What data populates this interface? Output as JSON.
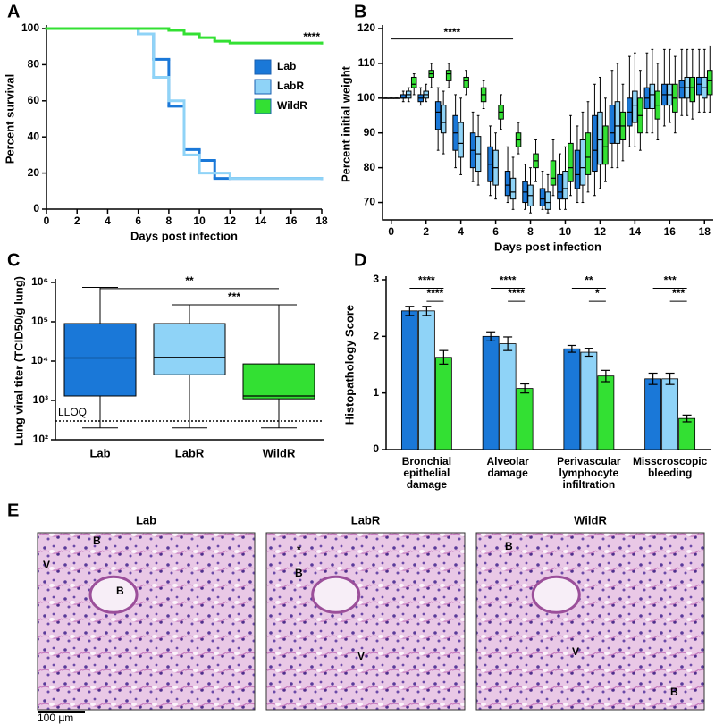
{
  "panel_labels": [
    "A",
    "B",
    "C",
    "D",
    "E"
  ],
  "chart_data": [
    {
      "type": "line",
      "step": true,
      "xlabel": "Days post infection",
      "ylabel": "Percent survival",
      "xlim": [
        0,
        18
      ],
      "ylim": [
        0,
        100
      ],
      "xticks": [
        0,
        2,
        4,
        6,
        8,
        10,
        12,
        14,
        16,
        18
      ],
      "yticks": [
        0,
        20,
        40,
        60,
        80,
        100
      ],
      "annotation": "****",
      "legend": "upper right",
      "x": [
        0,
        6,
        7,
        8,
        9,
        10,
        11,
        12,
        18
      ],
      "series": [
        {
          "name": "Lab",
          "color": "#1a78d8",
          "values": [
            100,
            97,
            83,
            57,
            33,
            27,
            17,
            17,
            17
          ]
        },
        {
          "name": "LabR",
          "color": "#8fd3f7",
          "values": [
            100,
            97,
            73,
            60,
            30,
            20,
            20,
            17,
            17
          ]
        },
        {
          "name": "WildR",
          "color": "#33e033",
          "values": [
            100,
            100,
            100,
            99,
            97,
            95,
            93,
            92,
            92
          ]
        }
      ]
    },
    {
      "type": "box",
      "xlabel": "Days post infection",
      "ylabel": "Percent initial weight",
      "xlim": [
        -0.5,
        18.5
      ],
      "ylim": [
        65,
        120
      ],
      "xticks": [
        0,
        2,
        4,
        6,
        8,
        10,
        12,
        14,
        16,
        18
      ],
      "yticks": [
        70,
        80,
        90,
        100,
        110,
        120
      ],
      "annotation": {
        "text": "****",
        "x": [
          0,
          7
        ],
        "y": 117
      },
      "x": [
        0,
        1,
        2,
        3,
        4,
        5,
        6,
        7,
        8,
        9,
        10,
        11,
        12,
        13,
        14,
        15,
        16,
        17,
        18
      ],
      "series": [
        {
          "color": "#1a78d8",
          "boxes": [
            [
              100,
              100,
              100,
              100,
              100
            ],
            [
              99,
              100,
              100,
              101,
              102
            ],
            [
              98,
              99,
              100,
              101,
              103
            ],
            [
              85,
              91,
              96,
              99,
              103
            ],
            [
              80,
              85,
              90,
              95,
              101
            ],
            [
              76,
              80,
              85,
              90,
              96
            ],
            [
              72,
              76,
              81,
              86,
              92
            ],
            [
              70,
              72,
              75,
              79,
              86
            ],
            [
              68,
              70,
              73,
              76,
              81
            ],
            [
              68,
              69,
              71,
              74,
              79
            ],
            [
              68,
              71,
              73,
              78,
              84
            ],
            [
              70,
              74,
              78,
              85,
              92
            ],
            [
              72,
              79,
              85,
              95,
              104
            ],
            [
              80,
              87,
              90,
              98,
              108
            ],
            [
              86,
              92,
              96,
              100,
              112
            ],
            [
              90,
              97,
              100,
              103,
              113
            ],
            [
              92,
              98,
              101,
              104,
              114
            ],
            [
              95,
              100,
              103,
              105,
              114
            ],
            [
              96,
              101,
              104,
              106,
              114
            ]
          ]
        },
        {
          "color": "#8fd3f7",
          "boxes": [
            [
              100,
              100,
              100,
              100,
              100
            ],
            [
              99,
              100,
              101,
              102,
              103
            ],
            [
              99,
              100,
              101,
              102,
              104
            ],
            [
              84,
              90,
              93,
              98,
              102
            ],
            [
              78,
              83,
              87,
              93,
              100
            ],
            [
              75,
              79,
              84,
              89,
              95
            ],
            [
              71,
              75,
              80,
              85,
              90
            ],
            [
              68,
              71,
              73,
              77,
              83
            ],
            [
              67,
              69,
              72,
              75,
              80
            ],
            [
              67,
              68,
              70,
              73,
              78
            ],
            [
              68,
              71,
              74,
              79,
              86
            ],
            [
              70,
              75,
              80,
              88,
              96
            ],
            [
              74,
              81,
              88,
              96,
              106
            ],
            [
              80,
              87,
              92,
              99,
              110
            ],
            [
              86,
              93,
              98,
              102,
              113
            ],
            [
              90,
              97,
              101,
              104,
              114
            ],
            [
              93,
              98,
              101,
              104,
              114
            ],
            [
              95,
              100,
              103,
              106,
              114
            ],
            [
              96,
              100,
              103,
              106,
              114
            ]
          ]
        },
        {
          "color": "#33e033",
          "boxes": [
            [
              100,
              100,
              100,
              100,
              100
            ],
            [
              101,
              103,
              104,
              106,
              107
            ],
            [
              103,
              106,
              107,
              108,
              110
            ],
            [
              103,
              105,
              107,
              108,
              110
            ],
            [
              101,
              103,
              105,
              106,
              108
            ],
            [
              97,
              99,
              101,
              103,
              105
            ],
            [
              91,
              94,
              96,
              98,
              101
            ],
            [
              84,
              86,
              88,
              90,
              93
            ],
            [
              76,
              80,
              82,
              84,
              88
            ],
            [
              72,
              75,
              77,
              82,
              88
            ],
            [
              72,
              76,
              80,
              87,
              95
            ],
            [
              73,
              78,
              83,
              90,
              99
            ],
            [
              76,
              81,
              86,
              92,
              100
            ],
            [
              82,
              88,
              92,
              96,
              104
            ],
            [
              85,
              90,
              95,
              100,
              108
            ],
            [
              88,
              94,
              98,
              102,
              110
            ],
            [
              90,
              96,
              100,
              104,
              112
            ],
            [
              94,
              99,
              103,
              106,
              114
            ],
            [
              96,
              101,
              105,
              108,
              115
            ]
          ]
        }
      ]
    },
    {
      "type": "box",
      "log": true,
      "ylabel": "Lung viral titer (TCID50/g lung)",
      "categories": [
        "Lab",
        "LabR",
        "WildR"
      ],
      "colors": [
        "#1a78d8",
        "#8fd3f7",
        "#33e033"
      ],
      "boxes": [
        [
          200,
          1300,
          12000,
          90000,
          750000
        ],
        [
          200,
          4500,
          12500,
          90000,
          270000
        ],
        [
          200,
          1100,
          1300,
          8500,
          270000
        ]
      ],
      "ylim": [
        100,
        1000000
      ],
      "yticks": [
        {
          "value": 100,
          "label": "10²"
        },
        {
          "value": 1000,
          "label": "10³"
        },
        {
          "value": 10000,
          "label": "10⁴"
        },
        {
          "value": 100000,
          "label": "10⁵"
        },
        {
          "value": 1000000,
          "label": "10⁶"
        }
      ],
      "reference": {
        "label": "LLOQ",
        "value": 300
      },
      "significance": [
        {
          "label": "**",
          "between": [
            0,
            2
          ],
          "y": 700000
        },
        {
          "label": "***",
          "between": [
            1,
            2
          ],
          "y": 270000
        }
      ]
    },
    {
      "type": "bar",
      "ylabel": "Histopathology Score",
      "categories": [
        [
          "Bronchial",
          "epithelial",
          "damage"
        ],
        [
          "Alveolar",
          "damage"
        ],
        [
          "Perivascular",
          "lymphocyte",
          "infiltration"
        ],
        [
          "Misscroscopic",
          "bleeding"
        ]
      ],
      "ylim": [
        0,
        3
      ],
      "yticks": [
        0,
        1,
        2,
        3
      ],
      "series": [
        {
          "color": "#1a78d8",
          "values": [
            2.45,
            2.0,
            1.78,
            1.25
          ],
          "errors": [
            0.08,
            0.08,
            0.06,
            0.1
          ]
        },
        {
          "color": "#8fd3f7",
          "values": [
            2.45,
            1.87,
            1.72,
            1.25
          ],
          "errors": [
            0.08,
            0.12,
            0.07,
            0.1
          ]
        },
        {
          "color": "#33e033",
          "values": [
            1.63,
            1.08,
            1.3,
            0.55
          ],
          "errors": [
            0.12,
            0.08,
            0.1,
            0.06
          ]
        }
      ],
      "significance": [
        {
          "category": 0,
          "between": [
            0,
            2
          ],
          "label": "****",
          "y": 2.85
        },
        {
          "category": 0,
          "between": [
            1,
            2
          ],
          "label": "****",
          "y": 2.62
        },
        {
          "category": 1,
          "between": [
            0,
            2
          ],
          "label": "****",
          "y": 2.85
        },
        {
          "category": 1,
          "between": [
            1,
            2
          ],
          "label": "****",
          "y": 2.62
        },
        {
          "category": 2,
          "between": [
            0,
            2
          ],
          "label": "**",
          "y": 2.85
        },
        {
          "category": 2,
          "between": [
            1,
            2
          ],
          "label": "*",
          "y": 2.62
        },
        {
          "category": 3,
          "between": [
            0,
            2
          ],
          "label": "***",
          "y": 2.85
        },
        {
          "category": 3,
          "between": [
            1,
            2
          ],
          "label": "***",
          "y": 2.62
        }
      ]
    }
  ],
  "images": [
    {
      "title": "Lab",
      "labels": [
        "B",
        "B",
        "V"
      ]
    },
    {
      "title": "LabR",
      "labels": [
        "B",
        "V",
        "*"
      ]
    },
    {
      "title": "WildR",
      "labels": [
        "B",
        "V",
        "B"
      ]
    }
  ],
  "scale_bar": "100 µm"
}
